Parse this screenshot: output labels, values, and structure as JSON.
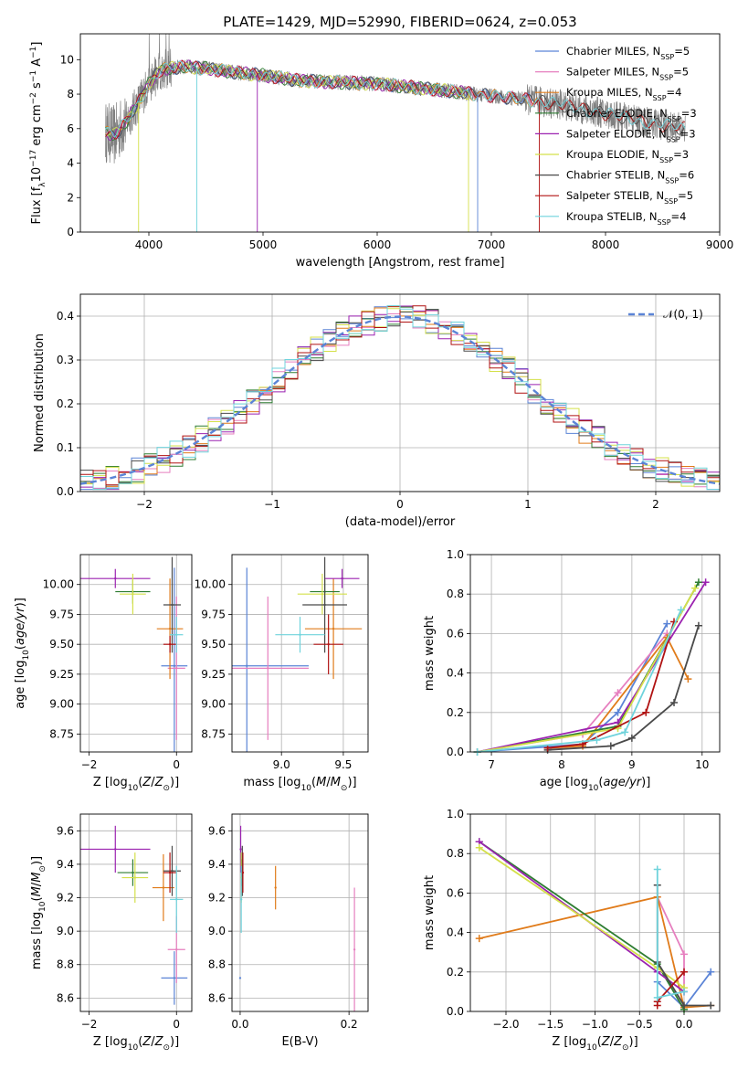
{
  "figure_title": "PLATE=1429, MJD=52990, FIBERID=0624, z=0.053",
  "colors": {
    "Chabrier MILES": "#5b84d6",
    "Salpeter MILES": "#e67fbf",
    "Kroupa MILES": "#e07b1a",
    "Chabrier ELODIE": "#2e7d32",
    "Salpeter ELODIE": "#9b22b0",
    "Kroupa ELODIE": "#d4e04a",
    "Chabrier STELIB": "#4a4a4a",
    "Salpeter STELIB": "#b01212",
    "Kroupa STELIB": "#6fd3dc",
    "data": "#808080"
  },
  "chart_data": [
    {
      "id": "spectrum",
      "type": "line",
      "xlabel": "wavelength [Angstrom, rest frame]",
      "ylabel": "Flux [f_λ 10^-17 erg cm^-2 s^-1 A^-1]",
      "xlim": [
        3400,
        9000
      ],
      "ylim": [
        0,
        11.5
      ],
      "xticks": [
        "4000",
        "5000",
        "6000",
        "7000",
        "8000",
        "9000"
      ],
      "yticks": [
        "0",
        "2",
        "4",
        "6",
        "8",
        "10"
      ],
      "legend_position": "upper-right",
      "legend": [
        "Chabrier MILES, N_SSP=5",
        "Salpeter MILES, N_SSP=5",
        "Kroupa MILES, N_SSP=4",
        "Chabrier ELODIE, N_SSP=3",
        "Salpeter ELODIE, N_SSP=3",
        "Kroupa ELODIE, N_SSP=3",
        "Chabrier STELIB, N_SSP=6",
        "Salpeter STELIB, N_SSP=5",
        "Kroupa STELIB, N_SSP=4"
      ],
      "continuum": [
        [
          3620,
          5.8
        ],
        [
          3700,
          5.6
        ],
        [
          3800,
          6.4
        ],
        [
          3900,
          7.4
        ],
        [
          4000,
          8.6
        ],
        [
          4100,
          9.4
        ],
        [
          4300,
          9.6
        ],
        [
          4500,
          9.5
        ],
        [
          4700,
          9.3
        ],
        [
          5000,
          9.1
        ],
        [
          5300,
          8.8
        ],
        [
          5600,
          8.7
        ],
        [
          6000,
          8.6
        ],
        [
          6300,
          8.4
        ],
        [
          6600,
          8.2
        ],
        [
          7000,
          7.9
        ],
        [
          7300,
          7.7
        ],
        [
          7600,
          7.4
        ],
        [
          7900,
          7.0
        ],
        [
          8200,
          6.6
        ],
        [
          8500,
          6.2
        ],
        [
          8700,
          6.0
        ]
      ],
      "models_end_at_A": {
        "MILES": 7400,
        "ELODIE": 6800,
        "STELIB": 8700
      }
    },
    {
      "id": "residuals",
      "type": "bar",
      "xlabel": "(data-model)/error",
      "ylabel": "Normed distribution",
      "xlim": [
        -2.5,
        2.5
      ],
      "ylim": [
        0,
        0.45
      ],
      "xticks": [
        "−2",
        "−1",
        "0",
        "1",
        "2"
      ],
      "yticks": [
        "0.0",
        "0.1",
        "0.2",
        "0.3",
        "0.4"
      ],
      "reference_curve": "𝒩(0, 1)",
      "legend_position": "upper-right",
      "bin_width": 0.1
    },
    {
      "id": "age_vs_Z",
      "type": "scatter",
      "xlabel": "Z [log10(Z/Z⊙)]",
      "ylabel": "age [log10(age/yr)]",
      "xlim": [
        -2.2,
        0.35
      ],
      "ylim": [
        8.6,
        10.25
      ],
      "xticks": [
        "−2",
        "0"
      ],
      "yticks": [
        "8.75",
        "9.00",
        "9.25",
        "9.50",
        "9.75",
        "10.00"
      ],
      "points": [
        {
          "model": "Chabrier MILES",
          "x": -0.05,
          "y": 9.32,
          "xerr": 0.3,
          "yerr": 0.82
        },
        {
          "model": "Salpeter MILES",
          "x": 0.0,
          "y": 9.3,
          "xerr": 0.2,
          "yerr": 0.6
        },
        {
          "model": "Kroupa MILES",
          "x": -0.15,
          "y": 9.63,
          "xerr": 0.3,
          "yerr": 0.42
        },
        {
          "model": "Chabrier ELODIE",
          "x": -1.0,
          "y": 9.94,
          "xerr": 0.4,
          "yerr": 0.1
        },
        {
          "model": "Salpeter ELODIE",
          "x": -1.4,
          "y": 10.05,
          "xerr": 0.8,
          "yerr": 0.08
        },
        {
          "model": "Kroupa ELODIE",
          "x": -1.0,
          "y": 9.92,
          "xerr": 0.3,
          "yerr": 0.17
        },
        {
          "model": "Chabrier STELIB",
          "x": -0.1,
          "y": 9.83,
          "xerr": 0.2,
          "yerr": 0.4
        },
        {
          "model": "Salpeter STELIB",
          "x": -0.15,
          "y": 9.5,
          "xerr": 0.15,
          "yerr": 0.07
        },
        {
          "model": "Kroupa STELIB",
          "x": 0.0,
          "y": 9.58,
          "xerr": 0.15,
          "yerr": 0.15
        }
      ]
    },
    {
      "id": "age_vs_mass",
      "type": "scatter",
      "xlabel": "mass [log10(M/M⊙)]",
      "ylabel": "",
      "xlim": [
        8.6,
        9.7
      ],
      "ylim": [
        8.6,
        10.25
      ],
      "xticks": [
        "9.0",
        "9.5"
      ],
      "yticks": [
        "8.75",
        "9.00",
        "9.25",
        "9.50",
        "9.75",
        "10.00"
      ],
      "points": [
        {
          "model": "Chabrier MILES",
          "x": 8.72,
          "y": 9.32,
          "xerr": 0.5,
          "yerr": 0.82
        },
        {
          "model": "Salpeter MILES",
          "x": 8.89,
          "y": 9.3,
          "xerr": 0.33,
          "yerr": 0.6
        },
        {
          "model": "Kroupa MILES",
          "x": 9.42,
          "y": 9.63,
          "xerr": 0.23,
          "yerr": 0.42
        },
        {
          "model": "Chabrier ELODIE",
          "x": 9.35,
          "y": 9.94,
          "xerr": 0.12,
          "yerr": 0.1
        },
        {
          "model": "Salpeter ELODIE",
          "x": 9.49,
          "y": 10.05,
          "xerr": 0.14,
          "yerr": 0.08
        },
        {
          "model": "Kroupa ELODIE",
          "x": 9.33,
          "y": 9.92,
          "xerr": 0.2,
          "yerr": 0.17
        },
        {
          "model": "Chabrier STELIB",
          "x": 9.35,
          "y": 9.83,
          "xerr": 0.18,
          "yerr": 0.4
        },
        {
          "model": "Salpeter STELIB",
          "x": 9.38,
          "y": 9.5,
          "xerr": 0.12,
          "yerr": 0.25
        },
        {
          "model": "Kroupa STELIB",
          "x": 9.15,
          "y": 9.58,
          "xerr": 0.2,
          "yerr": 0.15
        }
      ]
    },
    {
      "id": "massweight_vs_age",
      "type": "line",
      "xlabel": "age [log10(age/yr)]",
      "ylabel": "mass weight",
      "xlim": [
        6.7,
        10.25
      ],
      "ylim": [
        0,
        1.0
      ],
      "xticks": [
        "7",
        "8",
        "9",
        "10"
      ],
      "yticks": [
        "0.0",
        "0.2",
        "0.4",
        "0.6",
        "0.8",
        "1.0"
      ],
      "series": [
        {
          "model": "Chabrier MILES",
          "points": [
            [
              6.8,
              0.0
            ],
            [
              8.3,
              0.04
            ],
            [
              8.8,
              0.2
            ],
            [
              9.5,
              0.65
            ]
          ]
        },
        {
          "model": "Salpeter MILES",
          "points": [
            [
              6.8,
              0.0
            ],
            [
              8.3,
              0.09
            ],
            [
              8.8,
              0.3
            ],
            [
              9.5,
              0.6
            ]
          ]
        },
        {
          "model": "Kroupa MILES",
          "points": [
            [
              7.8,
              0.02
            ],
            [
              8.3,
              0.03
            ],
            [
              9.5,
              0.58
            ],
            [
              9.8,
              0.37
            ]
          ]
        },
        {
          "model": "Chabrier ELODIE",
          "points": [
            [
              6.8,
              0.0
            ],
            [
              8.8,
              0.13
            ],
            [
              9.95,
              0.86
            ]
          ]
        },
        {
          "model": "Salpeter ELODIE",
          "points": [
            [
              6.8,
              0.0
            ],
            [
              8.8,
              0.15
            ],
            [
              10.05,
              0.86
            ]
          ]
        },
        {
          "model": "Kroupa ELODIE",
          "points": [
            [
              6.8,
              0.0
            ],
            [
              8.8,
              0.12
            ],
            [
              9.9,
              0.83
            ]
          ]
        },
        {
          "model": "Chabrier STELIB",
          "points": [
            [
              7.8,
              0.01
            ],
            [
              8.7,
              0.03
            ],
            [
              9.0,
              0.07
            ],
            [
              9.6,
              0.25
            ],
            [
              9.95,
              0.64
            ]
          ]
        },
        {
          "model": "Salpeter STELIB",
          "points": [
            [
              7.8,
              0.02
            ],
            [
              8.3,
              0.04
            ],
            [
              9.2,
              0.2
            ],
            [
              9.6,
              0.66
            ]
          ]
        },
        {
          "model": "Kroupa STELIB",
          "points": [
            [
              6.8,
              0.0
            ],
            [
              8.5,
              0.06
            ],
            [
              8.9,
              0.1
            ],
            [
              9.7,
              0.72
            ]
          ]
        }
      ]
    },
    {
      "id": "mass_vs_Z",
      "type": "scatter",
      "xlabel": "Z [log10(Z/Z⊙)]",
      "ylabel": "mass [log10(M/M⊙)]",
      "xlim": [
        -2.2,
        0.35
      ],
      "ylim": [
        8.52,
        9.7
      ],
      "xticks": [
        "−2",
        "0"
      ],
      "yticks": [
        "8.6",
        "8.8",
        "9.0",
        "9.2",
        "9.4",
        "9.6"
      ],
      "points": [
        {
          "model": "Chabrier MILES",
          "x": -0.05,
          "y": 8.72,
          "xerr": 0.3,
          "yerr": 0.16
        },
        {
          "model": "Salpeter MILES",
          "x": 0.0,
          "y": 8.89,
          "xerr": 0.2,
          "yerr": 0.2
        },
        {
          "model": "Kroupa MILES",
          "x": -0.3,
          "y": 9.26,
          "xerr": 0.25,
          "yerr": 0.2
        },
        {
          "model": "Chabrier ELODIE",
          "x": -1.0,
          "y": 9.35,
          "xerr": 0.35,
          "yerr": 0.08
        },
        {
          "model": "Salpeter ELODIE",
          "x": -1.4,
          "y": 9.49,
          "xerr": 0.8,
          "yerr": 0.14
        },
        {
          "model": "Kroupa ELODIE",
          "x": -0.95,
          "y": 9.32,
          "xerr": 0.3,
          "yerr": 0.15
        },
        {
          "model": "Chabrier STELIB",
          "x": -0.1,
          "y": 9.36,
          "xerr": 0.2,
          "yerr": 0.15
        },
        {
          "model": "Salpeter STELIB",
          "x": -0.15,
          "y": 9.35,
          "xerr": 0.15,
          "yerr": 0.12
        },
        {
          "model": "Kroupa STELIB",
          "x": 0.0,
          "y": 9.19,
          "xerr": 0.15,
          "yerr": 0.2
        }
      ]
    },
    {
      "id": "mass_vs_EBV",
      "type": "scatter",
      "xlabel": "E(B-V)",
      "ylabel": "",
      "xlim": [
        -0.015,
        0.235
      ],
      "ylim": [
        8.52,
        9.7
      ],
      "xticks": [
        "0.0",
        "0.2"
      ],
      "yticks": [
        "8.6",
        "8.8",
        "9.0",
        "9.2",
        "9.4",
        "9.6"
      ],
      "points": [
        {
          "model": "Chabrier MILES",
          "x": 0.0,
          "y": 8.72,
          "xerr": 0.0,
          "yerr": 0.0
        },
        {
          "model": "Salpeter MILES",
          "x": 0.21,
          "y": 8.89,
          "xerr": 0.0,
          "yerr": 0.37
        },
        {
          "model": "Kroupa MILES",
          "x": 0.065,
          "y": 9.26,
          "xerr": 0.0,
          "yerr": 0.13
        },
        {
          "model": "Chabrier ELODIE",
          "x": 0.003,
          "y": 9.35,
          "xerr": 0.0,
          "yerr": 0.08
        },
        {
          "model": "Salpeter ELODIE",
          "x": 0.001,
          "y": 9.49,
          "xerr": 0.0,
          "yerr": 0.14
        },
        {
          "model": "Kroupa ELODIE",
          "x": 0.002,
          "y": 9.32,
          "xerr": 0.0,
          "yerr": 0.15
        },
        {
          "model": "Chabrier STELIB",
          "x": 0.004,
          "y": 9.36,
          "xerr": 0.0,
          "yerr": 0.15
        },
        {
          "model": "Salpeter STELIB",
          "x": 0.005,
          "y": 9.35,
          "xerr": 0.0,
          "yerr": 0.12
        },
        {
          "model": "Kroupa STELIB",
          "x": 0.002,
          "y": 9.19,
          "xerr": 0.0,
          "yerr": 0.2
        }
      ]
    },
    {
      "id": "massweight_vs_Z",
      "type": "line",
      "xlabel": "Z [log10(Z/Z⊙)]",
      "ylabel": "mass weight",
      "xlim": [
        -2.4,
        0.4
      ],
      "ylim": [
        0,
        1.0
      ],
      "xticks": [
        "−2.0",
        "−1.5",
        "−1.0",
        "−0.5",
        "0.0"
      ],
      "yticks": [
        "0.0",
        "0.2",
        "0.4",
        "0.6",
        "0.8",
        "1.0"
      ],
      "series": [
        {
          "model": "Chabrier MILES",
          "points": [
            [
              -0.3,
              0.15
            ],
            [
              0.0,
              0.02
            ],
            [
              0.3,
              0.2
            ]
          ]
        },
        {
          "model": "Salpeter MILES",
          "points": [
            [
              -0.3,
              0.58
            ],
            [
              0.0,
              0.29
            ],
            [
              0.0,
              0.1
            ]
          ]
        },
        {
          "model": "Kroupa MILES",
          "points": [
            [
              -2.3,
              0.37
            ],
            [
              -0.3,
              0.58
            ],
            [
              0.0,
              0.02
            ],
            [
              0.3,
              0.03
            ]
          ]
        },
        {
          "model": "Chabrier ELODIE",
          "points": [
            [
              -2.3,
              0.86
            ],
            [
              -0.3,
              0.24
            ],
            [
              0.0,
              0.01
            ]
          ]
        },
        {
          "model": "Salpeter ELODIE",
          "points": [
            [
              -2.3,
              0.86
            ],
            [
              -0.3,
              0.2
            ],
            [
              0.0,
              0.1
            ]
          ]
        },
        {
          "model": "Kroupa ELODIE",
          "points": [
            [
              -2.3,
              0.83
            ],
            [
              -0.3,
              0.22
            ],
            [
              0.0,
              0.12
            ]
          ]
        },
        {
          "model": "Chabrier STELIB",
          "points": [
            [
              -0.3,
              0.64
            ],
            [
              -0.3,
              0.25
            ],
            [
              0.0,
              0.03
            ],
            [
              0.3,
              0.03
            ]
          ]
        },
        {
          "model": "Salpeter STELIB",
          "points": [
            [
              -0.3,
              0.03
            ],
            [
              -0.3,
              0.05
            ],
            [
              0.0,
              0.2
            ]
          ]
        },
        {
          "model": "Kroupa STELIB",
          "points": [
            [
              -0.3,
              0.72
            ],
            [
              -0.3,
              0.07
            ],
            [
              0.0,
              0.1
            ]
          ]
        }
      ]
    }
  ]
}
